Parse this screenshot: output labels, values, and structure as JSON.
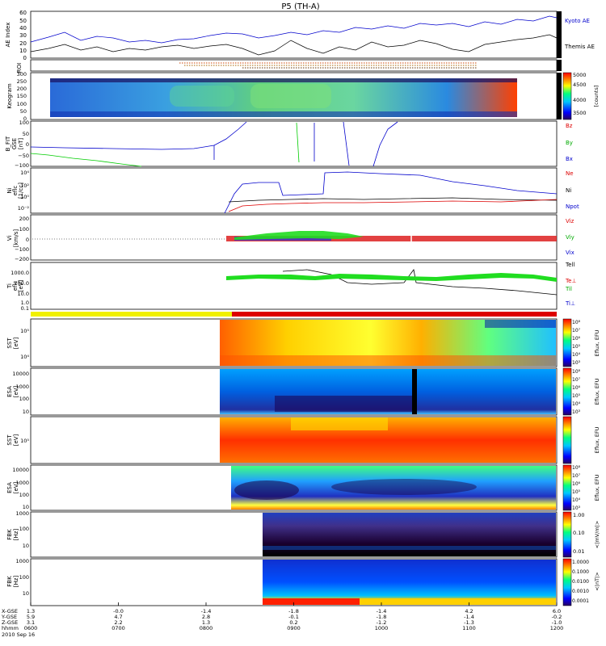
{
  "title": "P5 (TH-A)",
  "footer_labels": [
    "X-GSE",
    "Y-GSE",
    "Z-GSE",
    "hhmm",
    "2010 Sep 16"
  ],
  "x_axis": {
    "times": [
      "0600",
      "0700",
      "0800",
      "0900",
      "1000",
      "1100",
      "1200"
    ],
    "x_gse": [
      "1.3",
      "-0.0",
      "-1.4",
      "-1.8",
      "-1.4",
      "4.2",
      "6.0"
    ],
    "y_gse": [
      "5.9",
      "4.7",
      "2.8",
      "-0.1",
      "-1.8",
      "-1.4",
      "-0.2"
    ],
    "z_gse": [
      "3.1",
      "2.2",
      "1.3",
      "0.2",
      "-1.2",
      "-1.3",
      "-1.0"
    ]
  },
  "colors": {
    "blue": "#0000cc",
    "red": "#dd0000",
    "green": "#00cc00",
    "tplus": "#dd0000",
    "tminus": "#f0f000"
  },
  "panels": {
    "ae": {
      "ylabel": "AE Index",
      "ticks": [
        "60",
        "50",
        "40",
        "30",
        "20",
        "10",
        "0"
      ],
      "legend": [
        "Kyoto AE",
        "Themis AE"
      ]
    },
    "roi": {
      "ylabel": "ROI"
    },
    "keogram": {
      "ylabel": "Keogram",
      "ticks": [
        "300",
        "250",
        "200",
        "150",
        "100",
        "50",
        "0"
      ],
      "cbar_ticks": [
        "5000",
        "4500",
        "4000",
        "3500"
      ],
      "cbar_label": "[counts]"
    },
    "bfit": {
      "ylabel": [
        "B_FIT",
        "GSE",
        "[nT]"
      ],
      "ticks": [
        "100",
        "50",
        "0",
        "−50",
        "−100"
      ],
      "legend": [
        "Bz",
        "By",
        "Bx"
      ]
    },
    "ni": {
      "ylabel": [
        "Ni",
        "eflc",
        "[1/cc]"
      ],
      "ticks": [
        "10⁴",
        "10²",
        "10⁰",
        "10⁻²"
      ],
      "legend": [
        "Ne",
        "Ni",
        "Npot"
      ]
    },
    "vi": {
      "ylabel": [
        "Vi",
        "[km/s]"
      ],
      "ticks": [
        "200",
        "100",
        "0",
        "−100",
        "−200"
      ],
      "legend": [
        "Viz",
        "Viy",
        "Vix"
      ]
    },
    "ti": {
      "ylabel": [
        "Ti",
        "eflc",
        "[eV]"
      ],
      "ticks": [
        "1000.0",
        "100.0",
        "10.0",
        "1.0",
        "0.1"
      ],
      "legend": [
        "Tell",
        "Te⊥",
        "Til",
        "Ti⊥"
      ]
    },
    "sst_e": {
      "ylabel": [
        "SST",
        "[eV]"
      ],
      "ticks": [
        "10⁵",
        "10⁴"
      ],
      "cbar_ticks": [
        "10⁸",
        "10⁷",
        "10⁶",
        "10⁵",
        "10⁴",
        "10³"
      ],
      "cbar_label": "Eflux, EFU"
    },
    "esa_e": {
      "ylabel": [
        "ESA",
        "[eV]"
      ],
      "ticks": [
        "10000",
        "1000",
        "100",
        "10"
      ],
      "cbar_ticks": [
        "10⁸",
        "10⁷",
        "10⁶",
        "10⁵",
        "10⁴",
        "10³"
      ],
      "cbar_label": "Eflux, EFU"
    },
    "sst_i": {
      "ylabel": [
        "SST",
        "[eV]"
      ],
      "ticks": [
        "10⁵"
      ],
      "cbar_ticks": [],
      "cbar_label": "Eflux, EFU"
    },
    "esa_i": {
      "ylabel": [
        "ESA",
        "[eV]"
      ],
      "ticks": [
        "10000",
        "1000",
        "100",
        "10"
      ],
      "cbar_ticks": [
        "10⁸",
        "10⁷",
        "10⁶",
        "10⁵",
        "10⁴",
        "10³"
      ],
      "cbar_label": "Eflux, EFU"
    },
    "fbk1": {
      "ylabel": [
        "FBK",
        "[Hz]"
      ],
      "ticks": [
        "1000",
        "100",
        "10"
      ],
      "cbar_ticks": [
        "1.00",
        "0.10",
        "0.01"
      ],
      "cbar_label": "<|mV/m|>"
    },
    "fbk2": {
      "ylabel": [
        "FBK",
        "[Hz]"
      ],
      "ticks": [
        "1000",
        "100",
        "10"
      ],
      "cbar_ticks": [
        "1.0000",
        "0.1000",
        "0.0100",
        "0.0010",
        "0.0001"
      ],
      "cbar_label": "<|nT|>"
    }
  },
  "chart_data": [
    {
      "type": "line",
      "title": "AE Index",
      "ylim": [
        0,
        60
      ],
      "x": [
        "0600",
        "0630",
        "0700",
        "0730",
        "0800",
        "0830",
        "0900",
        "0930",
        "1000",
        "1030",
        "1100",
        "1130",
        "1200"
      ],
      "series": [
        {
          "name": "Kyoto AE",
          "values": [
            18,
            25,
            22,
            20,
            28,
            30,
            32,
            40,
            38,
            45,
            42,
            48,
            52
          ]
        },
        {
          "name": "Themis AE",
          "values": [
            6,
            14,
            8,
            6,
            10,
            10,
            4,
            16,
            12,
            22,
            6,
            24,
            28
          ]
        }
      ]
    },
    {
      "type": "heatmap",
      "title": "Keogram",
      "ylim": [
        0,
        300
      ],
      "x_start": "0600",
      "x_end": "1140"
    },
    {
      "type": "line",
      "title": "B_FIT GSE",
      "ylim": [
        -100,
        100
      ],
      "series": [
        {
          "name": "Bx",
          "x": [
            "0600",
            "0700",
            "0800",
            "0830",
            "0900",
            "1000",
            "1200"
          ],
          "values": [
            -20,
            -30,
            -25,
            20,
            -60,
            -80,
            100
          ]
        },
        {
          "name": "By",
          "x": [
            "0600",
            "0700",
            "0730"
          ],
          "values": [
            -50,
            -80,
            -100
          ]
        }
      ]
    },
    {
      "type": "line",
      "title": "Ni eflc",
      "yscale": "log",
      "series": [
        {
          "name": "Ni",
          "x": [
            "0800",
            "0830",
            "0900",
            "1000",
            "1100",
            "1200"
          ],
          "values": [
            1,
            30,
            300,
            500,
            100,
            60
          ]
        },
        {
          "name": "Ne",
          "x": [
            "0800",
            "0900",
            "1000",
            "1200"
          ],
          "values": [
            0.02,
            0.3,
            0.5,
            1
          ]
        },
        {
          "name": "Npot",
          "x": [
            "0800",
            "0900",
            "1000",
            "1200"
          ],
          "values": [
            0.5,
            1,
            1.5,
            1
          ]
        }
      ]
    },
    {
      "type": "line",
      "title": "Vi",
      "ylim": [
        -200,
        200
      ],
      "series": [
        {
          "name": "Vix",
          "x": [
            "0800",
            "1200"
          ],
          "values": [
            0,
            0
          ]
        },
        {
          "name": "Viy",
          "x": [
            "0800",
            "0900",
            "1000"
          ],
          "values": [
            0,
            20,
            10
          ]
        },
        {
          "name": "Viz",
          "x": [
            "0800",
            "1200"
          ],
          "values": [
            0,
            0
          ]
        }
      ]
    },
    {
      "type": "line",
      "title": "Ti eflc",
      "yscale": "log",
      "series": [
        {
          "name": "Tell",
          "x": [
            "0830",
            "0900",
            "0930",
            "1000",
            "1100",
            "1200"
          ],
          "values": [
            1000,
            800,
            200,
            100,
            60,
            30
          ]
        },
        {
          "name": "Til",
          "x": [
            "0800",
            "0900",
            "1000",
            "1100",
            "1200"
          ],
          "values": [
            300,
            300,
            250,
            350,
            200
          ]
        }
      ]
    }
  ]
}
